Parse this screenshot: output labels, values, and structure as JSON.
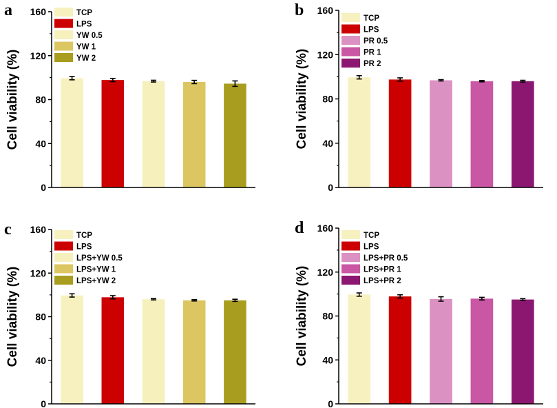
{
  "chart_data": [
    {
      "type": "bar",
      "panel": "a",
      "ylabel": "Cell viability (%)",
      "ylim": [
        0,
        160
      ],
      "yticks": [
        0,
        40,
        80,
        120,
        160
      ],
      "categories": [
        "TCP",
        "LPS",
        "YW 0.5",
        "YW 1",
        "YW 2"
      ],
      "values": [
        99.5,
        97.8,
        96.8,
        96.0,
        94.5
      ],
      "errors": [
        1.5,
        1.5,
        0.8,
        1.5,
        2.5
      ],
      "colors": [
        "#f7f1bf",
        "#cc0000",
        "#f6f0bd",
        "#dcc661",
        "#a99d20"
      ]
    },
    {
      "type": "bar",
      "panel": "b",
      "ylabel": "Cell viability (%)",
      "ylim": [
        0,
        160
      ],
      "yticks": [
        0,
        40,
        80,
        120,
        160
      ],
      "categories": [
        "TCP",
        "LPS",
        "PR 0.5",
        "PR 1",
        "PR 2"
      ],
      "values": [
        99.5,
        97.5,
        96.8,
        96.0,
        96.0
      ],
      "errors": [
        1.5,
        1.5,
        0.6,
        0.6,
        0.8
      ],
      "colors": [
        "#f7f1bf",
        "#cc0000",
        "#dc91c3",
        "#c957a4",
        "#8c1770"
      ]
    },
    {
      "type": "bar",
      "panel": "c",
      "ylabel": "Cell viability (%)",
      "ylim": [
        0,
        160
      ],
      "yticks": [
        0,
        40,
        80,
        120,
        160
      ],
      "categories": [
        "TCP",
        "LPS",
        "LPS+YW 0.5",
        "LPS+YW 1",
        "LPS+YW 2"
      ],
      "values": [
        99.5,
        97.8,
        96.0,
        95.0,
        95.0
      ],
      "errors": [
        1.5,
        1.5,
        0.6,
        0.6,
        1.0
      ],
      "colors": [
        "#f7f1bf",
        "#cc0000",
        "#f6f0bd",
        "#dcc661",
        "#a99d20"
      ]
    },
    {
      "type": "bar",
      "panel": "d",
      "ylabel": "Cell viability (%)",
      "ylim": [
        0,
        160
      ],
      "yticks": [
        0,
        40,
        80,
        120,
        160
      ],
      "categories": [
        "TCP",
        "LPS",
        "LPS+PR 0.5",
        "LPS+PR 1",
        "LPS+PR 2"
      ],
      "values": [
        99.5,
        97.8,
        95.5,
        95.8,
        95.0
      ],
      "errors": [
        1.5,
        1.5,
        2.0,
        1.2,
        0.8
      ],
      "colors": [
        "#f7f1bf",
        "#cc0000",
        "#dc91c3",
        "#c957a4",
        "#8c1770"
      ]
    }
  ]
}
